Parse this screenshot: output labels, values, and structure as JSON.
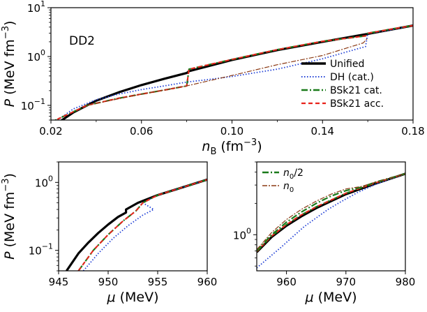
{
  "chart_data": [
    {
      "id": "top",
      "type": "line",
      "tag": "DD2",
      "xlabel": {
        "sym": "n",
        "sub": "B",
        "unit": " (fm",
        "exp": "−3",
        "close": ")"
      },
      "ylabel": "P (MeV fm⁻³)",
      "yscale": "log",
      "xlim": [
        0.02,
        0.18
      ],
      "ylim": [
        0.05,
        10
      ],
      "xticks": [
        "0.02",
        "0.06",
        "0.10",
        "0.14",
        "0.18"
      ],
      "yticks": [
        {
          "base": "10",
          "exp": "−1",
          "v": 0.1
        },
        {
          "base": "10",
          "exp": "0",
          "v": 1
        },
        {
          "base": "10",
          "exp": "1",
          "v": 10
        }
      ],
      "legend": [
        "Unified",
        "DH (cat.)",
        "BSk21 cat.",
        "BSk21 acc."
      ],
      "series": [
        {
          "name": "Unified",
          "color": "#000000",
          "x": [
            0.02,
            0.03,
            0.04,
            0.05,
            0.06,
            0.07,
            0.08,
            0.081,
            0.1,
            0.12,
            0.14,
            0.16,
            0.18
          ],
          "y": [
            0.035,
            0.072,
            0.125,
            0.185,
            0.26,
            0.35,
            0.46,
            0.5,
            0.85,
            1.35,
            2.0,
            2.9,
            4.3
          ]
        },
        {
          "name": "DH (cat.)",
          "color": "#1f3fd6",
          "x": [
            0.02,
            0.03,
            0.04,
            0.05,
            0.06,
            0.07,
            0.08,
            0.09,
            0.1,
            0.12,
            0.14,
            0.159,
            0.16,
            0.17,
            0.18
          ],
          "y": [
            0.04,
            0.085,
            0.13,
            0.17,
            0.21,
            0.25,
            0.3,
            0.34,
            0.39,
            0.55,
            0.9,
            1.6,
            2.95,
            3.5,
            4.3
          ]
        },
        {
          "name": "BSk21 cat.",
          "color": "#1a7a1a",
          "x": [
            0.02,
            0.036,
            0.05,
            0.06,
            0.07,
            0.08,
            0.081,
            0.1,
            0.12,
            0.14,
            0.159,
            0.16,
            0.17,
            0.18
          ],
          "y": [
            0.045,
            0.1,
            0.14,
            0.17,
            0.205,
            0.25,
            0.55,
            0.87,
            1.38,
            2.05,
            2.65,
            3.0,
            3.6,
            4.3
          ]
        },
        {
          "name": "BSk21 acc.",
          "color": "#e8231b",
          "x": [
            0.02,
            0.036,
            0.05,
            0.06,
            0.07,
            0.08,
            0.081,
            0.1,
            0.12,
            0.14,
            0.159,
            0.16,
            0.17,
            0.18
          ],
          "y": [
            0.045,
            0.1,
            0.14,
            0.17,
            0.205,
            0.25,
            0.55,
            0.87,
            1.38,
            2.05,
            2.65,
            3.0,
            3.6,
            4.3
          ]
        },
        {
          "name": "BSk21 cat. (n0/2)",
          "color": "#8b3a14",
          "x": [
            0.036,
            0.06,
            0.08,
            0.1,
            0.12,
            0.14,
            0.158,
            0.16
          ],
          "y": [
            0.1,
            0.17,
            0.25,
            0.41,
            0.68,
            1.05,
            1.9,
            2.4
          ]
        }
      ]
    },
    {
      "id": "bottom-left",
      "type": "line",
      "xlabel": {
        "sym": "μ",
        "unit": " (MeV)"
      },
      "ylabel": "P (MeV fm⁻³)",
      "yscale": "log",
      "xlim": [
        945,
        960
      ],
      "ylim": [
        0.05,
        2.0
      ],
      "xticks": [
        "945",
        "950",
        "955",
        "960"
      ],
      "yticks": [
        {
          "base": "10",
          "exp": "−1",
          "v": 0.1
        },
        {
          "base": "10",
          "exp": "0",
          "v": 1
        }
      ],
      "series": [
        {
          "name": "Unified",
          "color": "#000000",
          "x": [
            945.8,
            947,
            948,
            949,
            950,
            951,
            951.8,
            951.8,
            953,
            955,
            957,
            960
          ],
          "y": [
            0.05,
            0.09,
            0.13,
            0.18,
            0.24,
            0.31,
            0.36,
            0.4,
            0.5,
            0.65,
            0.8,
            1.1
          ]
        },
        {
          "name": "DH (cat.)",
          "color": "#1f3fd6",
          "x": [
            947.5,
            949,
            950.5,
            952,
            953.5,
            954.6,
            953.5,
            955,
            957,
            960
          ],
          "y": [
            0.05,
            0.09,
            0.15,
            0.23,
            0.33,
            0.4,
            0.5,
            0.65,
            0.8,
            1.1
          ]
        },
        {
          "name": "BSk21 cat.",
          "color": "#1a7a1a",
          "x": [
            947,
            948.5,
            950,
            951.5,
            952.8,
            953.5,
            955,
            957,
            960
          ],
          "y": [
            0.05,
            0.1,
            0.17,
            0.27,
            0.38,
            0.5,
            0.65,
            0.8,
            1.1
          ]
        },
        {
          "name": "BSk21 acc.",
          "color": "#e8231b",
          "x": [
            947,
            948.5,
            950,
            951.5,
            952.8,
            953.5,
            955,
            957,
            960
          ],
          "y": [
            0.05,
            0.1,
            0.17,
            0.27,
            0.38,
            0.5,
            0.65,
            0.8,
            1.1
          ]
        }
      ]
    },
    {
      "id": "bottom-right",
      "type": "line",
      "xlabel": {
        "sym": "μ",
        "unit": " (MeV)"
      },
      "yscale": "log",
      "xlim": [
        955,
        980
      ],
      "ylim": [
        0.45,
        5.0
      ],
      "xticks": [
        "960",
        "970",
        "980"
      ],
      "yticks": [
        {
          "base": "10",
          "exp": "0",
          "v": 1
        }
      ],
      "legend": [
        {
          "sym": "n",
          "sub": "0",
          "suffix": "/2"
        },
        {
          "sym": "n",
          "sub": "0",
          "suffix": ""
        }
      ],
      "series": [
        {
          "name": "Unified",
          "color": "#000000",
          "x": [
            955,
            957.5,
            960,
            962.5,
            965,
            967.5,
            970,
            975,
            980
          ],
          "y": [
            0.68,
            0.95,
            1.22,
            1.5,
            1.8,
            2.1,
            2.45,
            3.1,
            3.85
          ]
        },
        {
          "name": "DH (cat.)",
          "color": "#1f3fd6",
          "x": [
            955,
            957,
            959,
            961,
            963,
            965,
            967,
            969,
            972,
            975,
            980
          ],
          "y": [
            0.48,
            0.6,
            0.75,
            0.95,
            1.2,
            1.45,
            1.75,
            2.05,
            2.55,
            3.05,
            3.85
          ]
        },
        {
          "name": "BSk21 cat.",
          "color": "#1a7a1a",
          "x": [
            955,
            957.5,
            960,
            962.5,
            965,
            967.5,
            970,
            975,
            980
          ],
          "y": [
            0.69,
            0.97,
            1.25,
            1.55,
            1.85,
            2.15,
            2.5,
            3.15,
            3.85
          ]
        },
        {
          "name": "BSk21 acc.",
          "color": "#e8231b",
          "x": [
            955,
            957.5,
            960,
            962.5,
            965,
            967.5,
            970,
            975,
            980
          ],
          "y": [
            0.69,
            0.97,
            1.25,
            1.55,
            1.85,
            2.15,
            2.5,
            3.15,
            3.85
          ]
        },
        {
          "name": "n0/2",
          "color": "#1a7a1a",
          "x": [
            955,
            957.5,
            960,
            962.5,
            965,
            967.5,
            970,
            972.5,
            975,
            980
          ],
          "y": [
            0.7,
            1.0,
            1.32,
            1.65,
            2.0,
            2.35,
            2.65,
            2.85,
            3.2,
            3.85
          ]
        },
        {
          "name": "n0",
          "color": "#8b3a14",
          "x": [
            955,
            957.5,
            960,
            962.5,
            965,
            967.5,
            970,
            972.5,
            975,
            980
          ],
          "y": [
            0.72,
            1.05,
            1.4,
            1.75,
            2.1,
            2.45,
            2.75,
            2.9,
            3.2,
            3.85
          ]
        }
      ]
    }
  ]
}
